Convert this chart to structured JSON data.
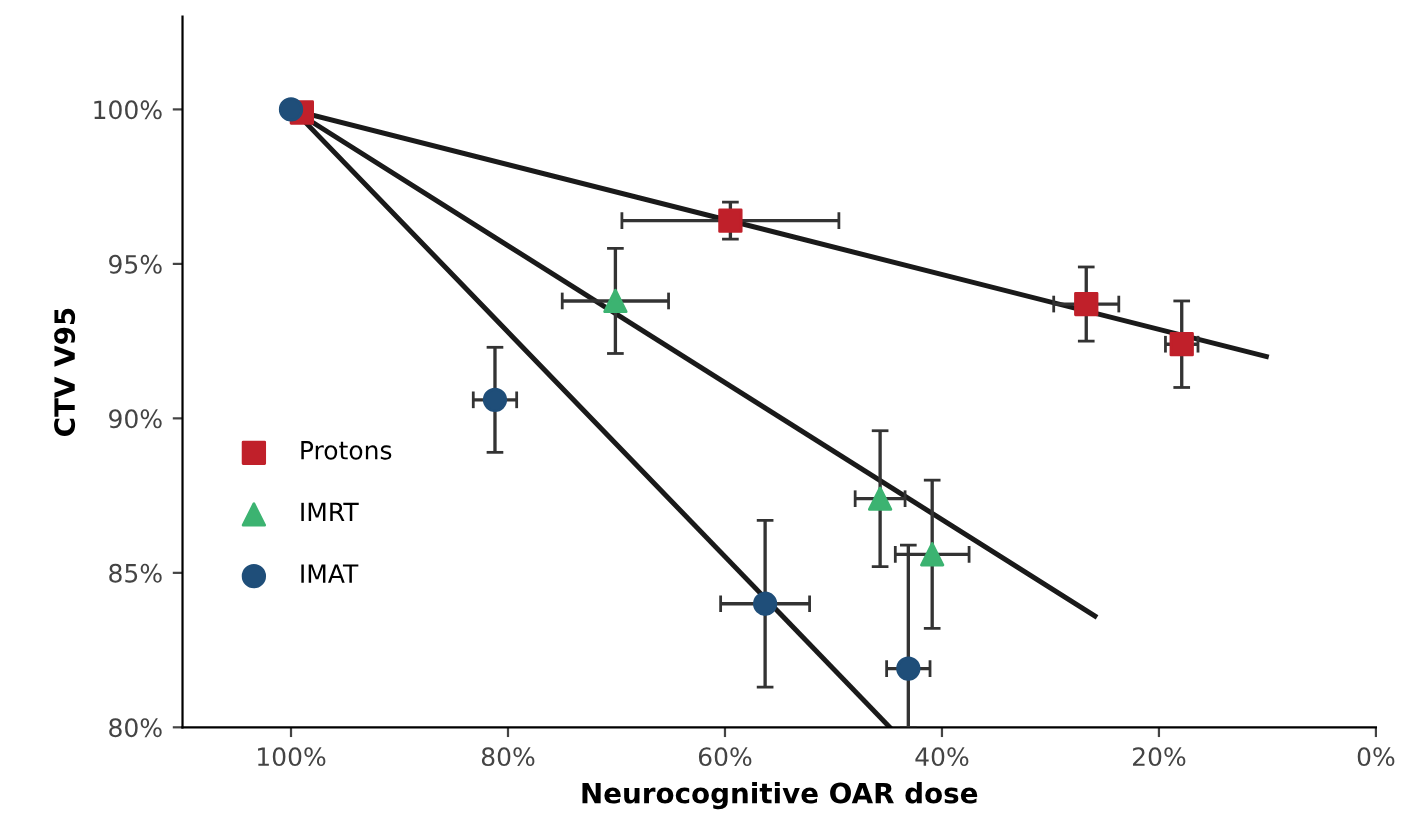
{
  "chart_data": {
    "type": "scatter",
    "xlabel": "Neurocognitive OAR dose",
    "ylabel": "CTV V95",
    "xlim": [
      110,
      0
    ],
    "ylim": [
      80,
      103
    ],
    "xticks": [
      {
        "value": 100,
        "label": "100%"
      },
      {
        "value": 80,
        "label": "80%"
      },
      {
        "value": 60,
        "label": "60%"
      },
      {
        "value": 40,
        "label": "40%"
      },
      {
        "value": 20,
        "label": "20%"
      },
      {
        "value": 0,
        "label": "0%"
      }
    ],
    "yticks": [
      {
        "value": 80,
        "label": "80%"
      },
      {
        "value": 85,
        "label": "85%"
      },
      {
        "value": 90,
        "label": "90%"
      },
      {
        "value": 95,
        "label": "95%"
      },
      {
        "value": 100,
        "label": "100%"
      }
    ],
    "grid": false,
    "legend": "left",
    "series": [
      {
        "type": "line",
        "color": "#1a1a1a",
        "x": [
          99,
          10.1
        ],
        "values": [
          99.9,
          92.0
        ],
        "marker": "none"
      },
      {
        "type": "line",
        "color": "#1a1a1a",
        "x": [
          99,
          25.9
        ],
        "values": [
          99.8,
          83.6
        ],
        "marker": "none"
      },
      {
        "type": "line",
        "color": "#1a1a1a",
        "x": [
          99,
          44.8
        ],
        "values": [
          99.7,
          80
        ],
        "marker": "none"
      },
      {
        "name": "Protons",
        "color": "#c0202a",
        "marker": "square",
        "x": [
          99,
          59.5,
          26.7,
          17.9
        ],
        "values": [
          99.9,
          96.4,
          93.7,
          92.4
        ],
        "errors": [
          null,
          0.6,
          1.2,
          1.4
        ],
        "xerrors": [
          null,
          10,
          3,
          1.5
        ]
      },
      {
        "name": "IMRT",
        "color": "#3cb371",
        "marker": "triangle",
        "x": [
          70.1,
          45.7,
          40.9
        ],
        "values": [
          93.8,
          87.4,
          85.6
        ],
        "errors": [
          1.7,
          2.2,
          2.4
        ],
        "xerrors": [
          4.9,
          2.3,
          3.4
        ]
      },
      {
        "name": "IMAT",
        "color": "#1f4e79",
        "marker": "circle",
        "x": [
          100,
          81.2,
          56.3,
          43.1
        ],
        "values": [
          100,
          90.6,
          84.0,
          81.9
        ],
        "errors": [
          null,
          1.7,
          2.7,
          [
            80,
            85.9
          ]
        ],
        "xerrors": [
          null,
          2,
          4.1,
          2
        ]
      }
    ]
  }
}
